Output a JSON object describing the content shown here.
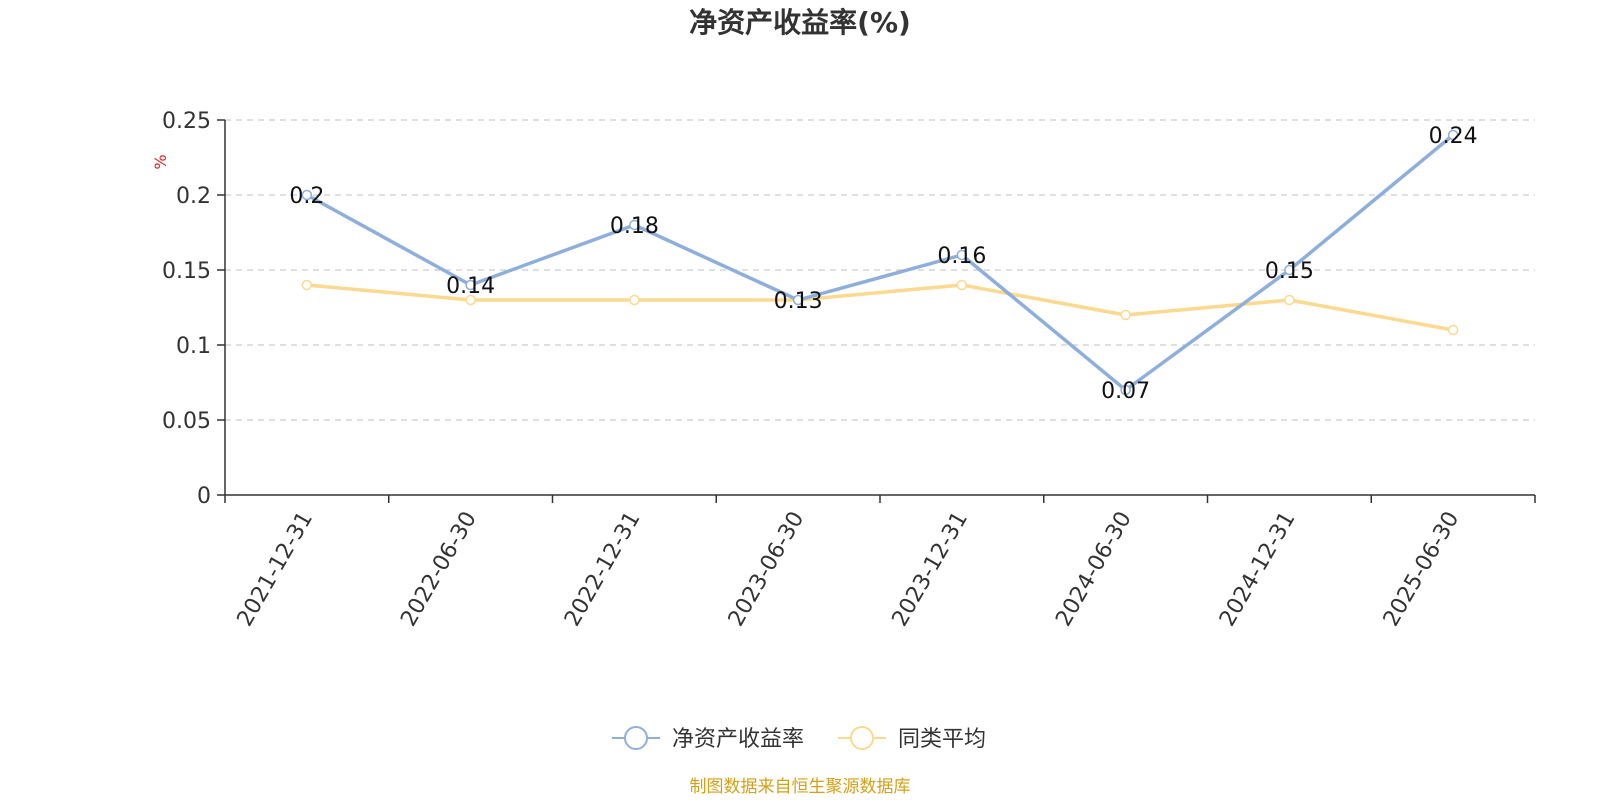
{
  "chart_data": {
    "type": "line",
    "title": "净资产收益率(%)",
    "ylabel": "%",
    "xlabel": "",
    "categories": [
      "2021-12-31",
      "2022-06-30",
      "2022-12-31",
      "2023-06-30",
      "2023-12-31",
      "2024-06-30",
      "2024-12-31",
      "2025-06-30"
    ],
    "y_ticks": [
      "0",
      "0.05",
      "0.1",
      "0.15",
      "0.2",
      "0.25"
    ],
    "ylim": [
      0,
      0.25
    ],
    "grid": true,
    "legend_position": "bottom-center",
    "series": [
      {
        "name": "净资产收益率",
        "color": "#8eaedb",
        "values": [
          0.2,
          0.14,
          0.18,
          0.13,
          0.16,
          0.07,
          0.15,
          0.24
        ],
        "labels": [
          "0.2",
          "0.14",
          "0.18",
          "0.13",
          "0.16",
          "0.07",
          "0.15",
          "0.24"
        ]
      },
      {
        "name": "同类平均",
        "color": "#fbd98f",
        "values": [
          0.14,
          0.13,
          0.13,
          0.13,
          0.14,
          0.12,
          0.13,
          0.11
        ]
      }
    ]
  },
  "source_note": "制图数据来自恒生聚源数据库",
  "colors": {
    "source_note": "#d4a017",
    "unit_label": "#e02020",
    "axis": "#333333",
    "grid": "#cccccc"
  }
}
